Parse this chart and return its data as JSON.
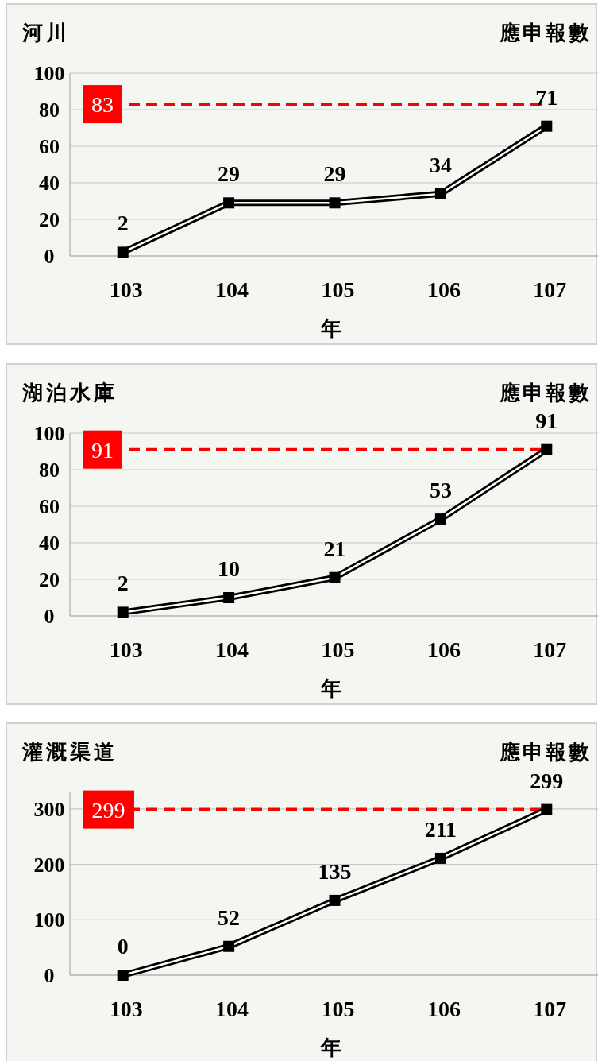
{
  "chart_data": [
    {
      "type": "line",
      "title": "河川",
      "ylabel": "應申報數",
      "xlabel": "年",
      "categories": [
        "103",
        "104",
        "105",
        "106",
        "107"
      ],
      "ylim": [
        0,
        100
      ],
      "yticks": [
        0,
        20,
        40,
        60,
        80,
        100
      ],
      "grid": "y",
      "marker": "square",
      "line_style": "solid",
      "data_labels": true,
      "series": [
        {
          "color": "#000000",
          "values": [
            2,
            29,
            29,
            34,
            71
          ]
        }
      ],
      "ref_lines": [
        {
          "axis": "y",
          "value": 83,
          "label": "83",
          "color": "#ff0000",
          "line_style": "dashed"
        }
      ]
    },
    {
      "type": "line",
      "title": "湖泊水庫",
      "ylabel": "應申報數",
      "xlabel": "年",
      "categories": [
        "103",
        "104",
        "105",
        "106",
        "107"
      ],
      "ylim": [
        0,
        100
      ],
      "yticks": [
        0,
        20,
        40,
        60,
        80,
        100
      ],
      "grid": "y",
      "marker": "square",
      "line_style": "solid",
      "data_labels": true,
      "series": [
        {
          "color": "#000000",
          "values": [
            2,
            10,
            21,
            53,
            91
          ]
        }
      ],
      "ref_lines": [
        {
          "axis": "y",
          "value": 91,
          "label": "91",
          "color": "#ff0000",
          "line_style": "dashed"
        }
      ]
    },
    {
      "type": "line",
      "title": "灌溉渠道",
      "ylabel": "應申報數",
      "xlabel": "年",
      "categories": [
        "103",
        "104",
        "105",
        "106",
        "107"
      ],
      "ylim": [
        0,
        330
      ],
      "yticks": [
        0,
        100,
        200,
        300
      ],
      "grid": "y",
      "marker": "square",
      "line_style": "solid",
      "data_labels": true,
      "series": [
        {
          "color": "#000000",
          "values": [
            0,
            52,
            135,
            211,
            299
          ]
        }
      ],
      "ref_lines": [
        {
          "axis": "y",
          "value": 299,
          "label": "299",
          "color": "#ff0000",
          "line_style": "dashed"
        }
      ]
    }
  ]
}
